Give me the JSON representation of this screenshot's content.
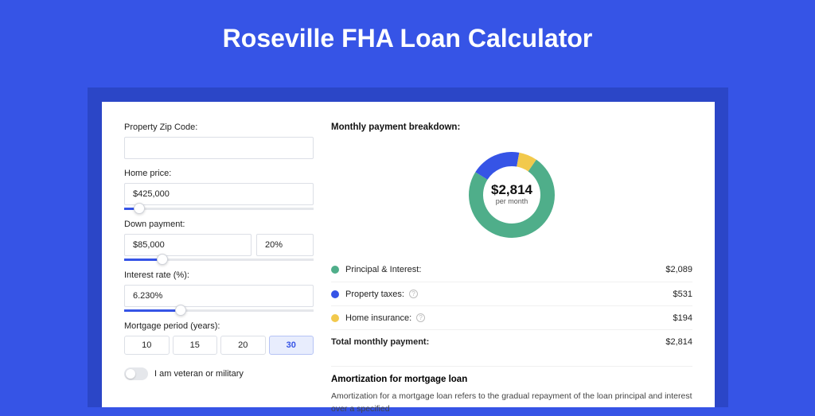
{
  "page": {
    "title": "Roseville FHA Loan Calculator",
    "background_color": "#3654e6",
    "shadow_color": "#2b46c7",
    "card_color": "#ffffff"
  },
  "form": {
    "zip": {
      "label": "Property Zip Code:",
      "value": ""
    },
    "price": {
      "label": "Home price:",
      "value": "$425,000",
      "slider_pct": 8
    },
    "down": {
      "label": "Down payment:",
      "value": "$85,000",
      "pct_value": "20%",
      "slider_pct": 20
    },
    "rate": {
      "label": "Interest rate (%):",
      "value": "6.230%",
      "slider_pct": 30
    },
    "period": {
      "label": "Mortgage period (years):",
      "options": [
        "10",
        "15",
        "20",
        "30"
      ],
      "selected": "30"
    },
    "veteran": {
      "label": "I am veteran or military",
      "on": false
    }
  },
  "breakdown": {
    "title": "Monthly payment breakdown:",
    "center_value": "$2,814",
    "center_sub": "per month",
    "donut": {
      "colors": {
        "pi": "#4fae8a",
        "tax": "#3654e6",
        "ins": "#f2c94c"
      },
      "values": {
        "pi": 2089,
        "tax": 531,
        "ins": 194
      }
    },
    "rows": [
      {
        "key": "pi",
        "label": "Principal & Interest:",
        "value": "$2,089",
        "info": false
      },
      {
        "key": "tax",
        "label": "Property taxes:",
        "value": "$531",
        "info": true
      },
      {
        "key": "ins",
        "label": "Home insurance:",
        "value": "$194",
        "info": true
      }
    ],
    "total": {
      "label": "Total monthly payment:",
      "value": "$2,814"
    }
  },
  "amortization": {
    "title": "Amortization for mortgage loan",
    "text": "Amortization for a mortgage loan refers to the gradual repayment of the loan principal and interest over a specified"
  }
}
